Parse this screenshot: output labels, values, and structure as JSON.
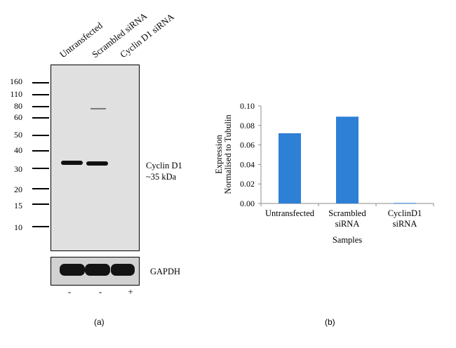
{
  "panel_a": {
    "letter": "(a)",
    "lanes": [
      "Untransfected",
      "Scrambled siRNA",
      "Cyclin D1 siRNA"
    ],
    "mw_markers": [
      "160",
      "110",
      "80",
      "60",
      "50",
      "40",
      "30",
      "20",
      "15",
      "10"
    ],
    "target_label": "Cyclin D1",
    "target_size": "~35 kDa",
    "loading_control": "GAPDH",
    "treatment": [
      "-",
      "-",
      "+"
    ]
  },
  "panel_b": {
    "letter": "(b)"
  },
  "chart_data": {
    "type": "bar",
    "categories": [
      "Untransfected",
      "Scrambled siRNA",
      "CyclinD1 siRNA"
    ],
    "category_lines": [
      [
        "Untransfected"
      ],
      [
        "Scrambled",
        "siRNA"
      ],
      [
        "CyclinD1",
        "siRNA"
      ]
    ],
    "values": [
      0.072,
      0.089,
      0.0005
    ],
    "xlabel": "Samples",
    "ylabel_lines": [
      "Expression",
      "Normalised to Tubulin"
    ],
    "ylim": [
      0,
      0.1
    ],
    "yticks": [
      "0.00",
      "0.02",
      "0.04",
      "0.06",
      "0.08",
      "0.10"
    ],
    "bar_color": "#2e7fd6",
    "grid": false,
    "legend": "none"
  }
}
